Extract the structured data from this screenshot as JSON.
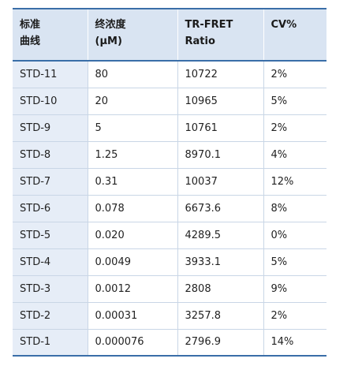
{
  "table": {
    "headers": [
      {
        "lines": [
          "标准",
          "曲线"
        ]
      },
      {
        "lines": [
          "终浓度",
          "(μM)"
        ]
      },
      {
        "lines": [
          "TR-FRET",
          "Ratio"
        ]
      },
      {
        "lines": [
          "CV%"
        ]
      }
    ],
    "rows": [
      [
        "STD-11",
        "80",
        "10722",
        "2%"
      ],
      [
        "STD-10",
        "20",
        "10965",
        "5%"
      ],
      [
        "STD-9",
        "5",
        "10761",
        "2%"
      ],
      [
        "STD-8",
        "1.25",
        "8970.1",
        "4%"
      ],
      [
        "STD-7",
        "0.31",
        "10037",
        "12%"
      ],
      [
        "STD-6",
        "0.078",
        "6673.6",
        "8%"
      ],
      [
        "STD-5",
        "0.020",
        "4289.5",
        "0%"
      ],
      [
        "STD-4",
        "0.0049",
        "3933.1",
        "5%"
      ],
      [
        "STD-3",
        "0.0012",
        "2808",
        "9%"
      ],
      [
        "STD-2",
        "0.00031",
        "3257.8",
        "2%"
      ],
      [
        "STD-1",
        "0.000076",
        "2796.9",
        "14%"
      ]
    ]
  },
  "colors": {
    "header_bg": "#d9e4f2",
    "first_col_bg": "#e6edf7",
    "accent_border": "#3a6ea8"
  }
}
